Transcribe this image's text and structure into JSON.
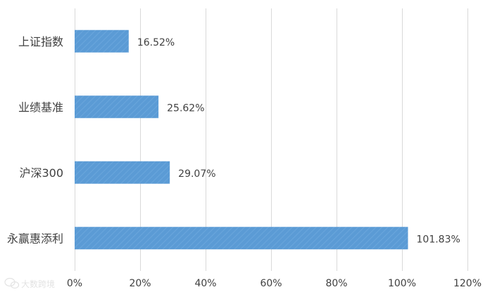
{
  "chart_data": {
    "type": "bar",
    "orientation": "horizontal",
    "categories": [
      "上证指数",
      "业绩基准",
      "沪深300",
      "永赢惠添利"
    ],
    "values": [
      16.52,
      25.62,
      29.07,
      101.83
    ],
    "value_labels": [
      "16.52%",
      "25.62%",
      "29.07%",
      "101.83%"
    ],
    "xlim": [
      0,
      120
    ],
    "x_ticks": [
      0,
      20,
      40,
      60,
      80,
      100,
      120
    ],
    "x_tick_labels": [
      "0%",
      "20%",
      "40%",
      "60%",
      "80%",
      "100%",
      "120%"
    ],
    "grid": true,
    "bar_color": "#5b9bd5",
    "grid_color": "#d9d9d9"
  },
  "watermark": {
    "text": "大数跨境",
    "icon": "wechat-logo-icon"
  }
}
